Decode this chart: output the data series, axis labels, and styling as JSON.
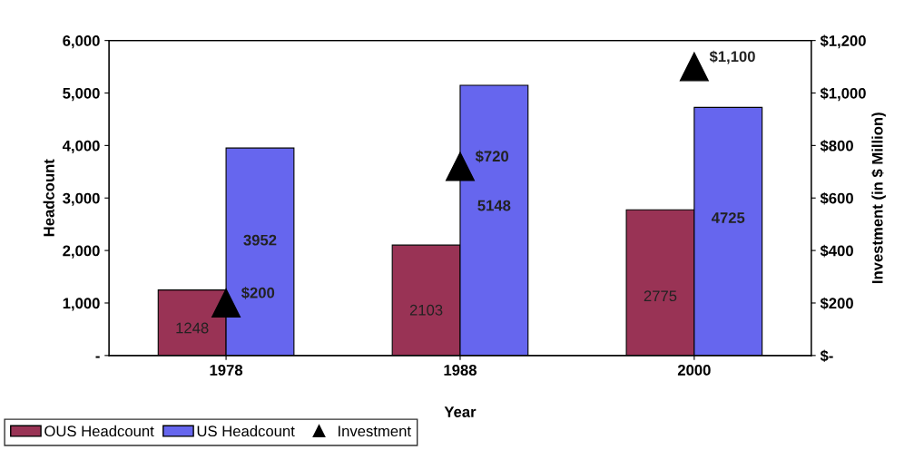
{
  "chart_data": {
    "type": "bar",
    "xlabel": "Year",
    "ylabel": "Headcount",
    "y2label": "Investment (in $ Million)",
    "categories": [
      "1978",
      "1988",
      "2000"
    ],
    "series": [
      {
        "name": "OUS Headcount",
        "color": "#993355",
        "values": [
          1248,
          2103,
          2775
        ],
        "value_labels": [
          "1248",
          "2103",
          "2775"
        ]
      },
      {
        "name": "US Headcount",
        "color": "#6666ee",
        "values": [
          3952,
          5148,
          4725
        ],
        "value_labels": [
          "3952",
          "5148",
          "4725"
        ]
      },
      {
        "name": "Investment",
        "type": "scatter",
        "axis": "y2",
        "color": "#000000",
        "marker": "triangle",
        "values": [
          200,
          720,
          1100
        ],
        "value_labels": [
          "$200",
          "$720",
          "$1,100"
        ]
      }
    ],
    "ylim": [
      0,
      6000
    ],
    "yticks": [
      {
        "value": 0,
        "label": "-"
      },
      {
        "value": 1000,
        "label": "1,000"
      },
      {
        "value": 2000,
        "label": "2,000"
      },
      {
        "value": 3000,
        "label": "3,000"
      },
      {
        "value": 4000,
        "label": "4,000"
      },
      {
        "value": 5000,
        "label": "5,000"
      },
      {
        "value": 6000,
        "label": "6,000"
      }
    ],
    "y2lim": [
      0,
      1200
    ],
    "y2ticks": [
      {
        "value": 0,
        "label": "$-"
      },
      {
        "value": 200,
        "label": "$200"
      },
      {
        "value": 400,
        "label": "$400"
      },
      {
        "value": 600,
        "label": "$600"
      },
      {
        "value": 800,
        "label": "$800"
      },
      {
        "value": 1000,
        "label": "$1,000"
      },
      {
        "value": 1200,
        "label": "$1,200"
      }
    ],
    "grid": false,
    "legend": "bottom left"
  }
}
